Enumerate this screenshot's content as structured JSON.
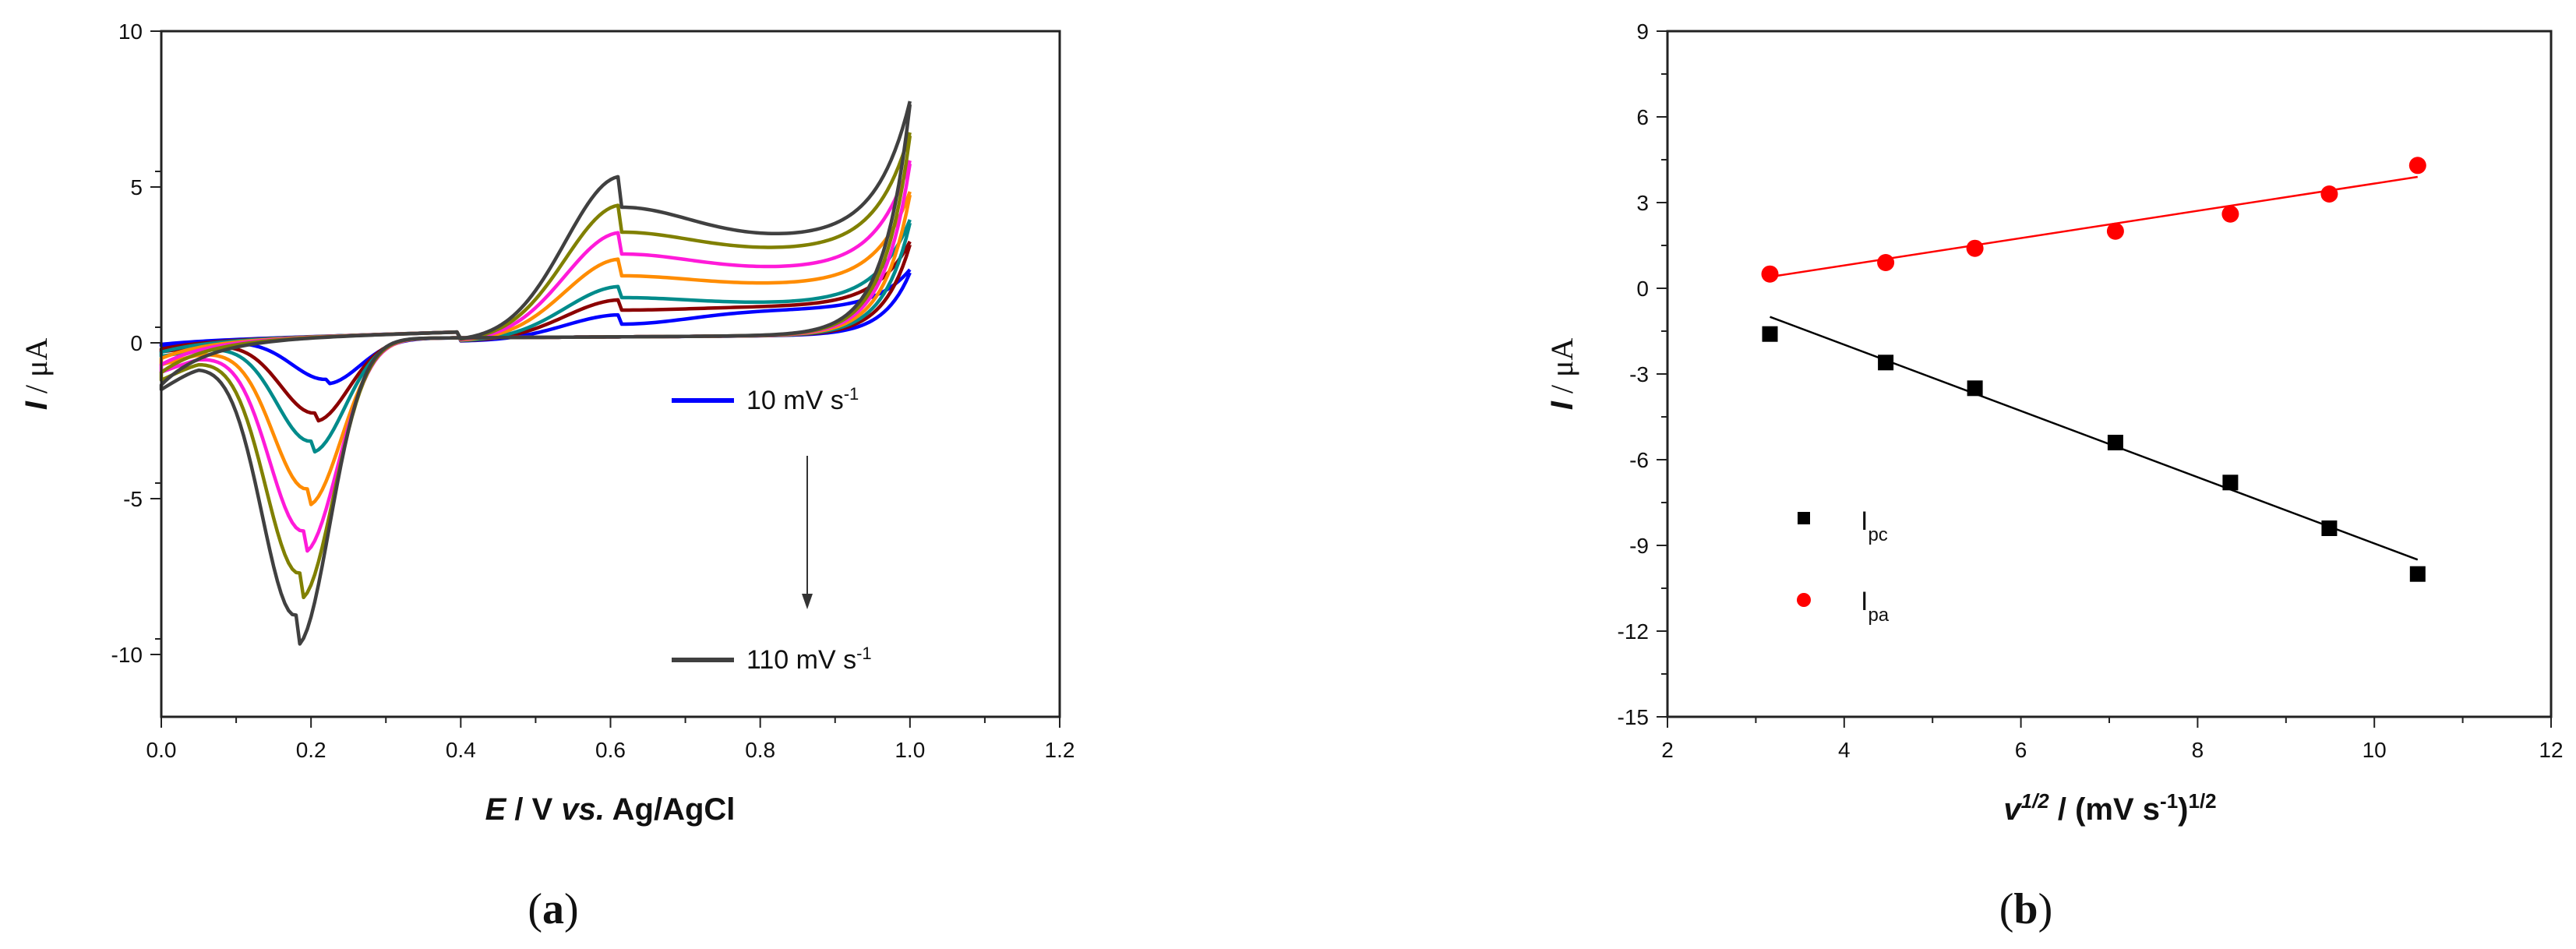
{
  "chart_data": [
    {
      "type": "line",
      "panel_label": {
        "open": "(",
        "letter": "a",
        "close": ")"
      },
      "xlabel": {
        "italic": "E",
        "mid": " / V ",
        "vs": "vs.",
        "rest": " Ag/AgCl"
      },
      "ylabel": {
        "italic": "I",
        "rest": " / μA"
      },
      "xlim": [
        0.0,
        1.2
      ],
      "ylim": [
        -12,
        10
      ],
      "x_ticks": [
        "0.0",
        "0.2",
        "0.4",
        "0.6",
        "0.8",
        "1.0",
        "1.2"
      ],
      "y_ticks": [
        "10",
        "5",
        "0",
        "-5",
        "-10"
      ],
      "grid": false,
      "annotations": [
        {
          "text": "10 mV s",
          "sup": "-1",
          "color": "#0000ff"
        },
        {
          "text": "110 mV s",
          "sup": "-1",
          "color": "#404040"
        }
      ],
      "series": [
        {
          "color": "#0000ff",
          "switch_current": 2.3,
          "min_current": 1.0,
          "cath_peak_E": 0.22,
          "cath_peak_I": -1.4,
          "anod_peak_I": 0.55,
          "forward_base": -0.1
        },
        {
          "color": "#8b0000",
          "switch_current": 3.2,
          "min_current": 1.1,
          "cath_peak_E": 0.205,
          "cath_peak_I": -2.6,
          "anod_peak_I": 1.0,
          "forward_base": -0.25
        },
        {
          "color": "#008b8b",
          "switch_current": 3.9,
          "min_current": 1.2,
          "cath_peak_E": 0.2,
          "cath_peak_I": -3.6,
          "anod_peak_I": 1.4,
          "forward_base": -0.35
        },
        {
          "color": "#ff8c00",
          "switch_current": 4.8,
          "min_current": 1.8,
          "cath_peak_E": 0.195,
          "cath_peak_I": -5.3,
          "anod_peak_I": 2.1,
          "forward_base": -0.55
        },
        {
          "color": "#ff1ad9",
          "switch_current": 5.8,
          "min_current": 2.3,
          "cath_peak_E": 0.19,
          "cath_peak_I": -6.8,
          "anod_peak_I": 2.8,
          "forward_base": -0.75
        },
        {
          "color": "#808000",
          "switch_current": 6.7,
          "min_current": 2.9,
          "cath_peak_E": 0.185,
          "cath_peak_I": -8.3,
          "anod_peak_I": 3.5,
          "forward_base": -1.0
        },
        {
          "color": "#404040",
          "switch_current": 7.7,
          "min_current": 3.3,
          "cath_peak_E": 0.18,
          "cath_peak_I": -9.8,
          "anod_peak_I": 4.3,
          "forward_base": -1.4
        }
      ]
    },
    {
      "type": "scatter",
      "panel_label": {
        "open": "(",
        "letter": "b",
        "close": ")"
      },
      "xlabel": {
        "italic": "v",
        "sup": "1/2",
        "mid": " / (mV s",
        "sup2": "-1",
        "close": ")",
        "sup3": "1/2"
      },
      "ylabel": {
        "italic": "I",
        "rest": " / μA"
      },
      "xlim": [
        2,
        12
      ],
      "ylim": [
        -15,
        9
      ],
      "x_ticks": [
        "2",
        "4",
        "6",
        "8",
        "10",
        "12"
      ],
      "y_ticks": [
        "9",
        "6",
        "3",
        "0",
        "-3",
        "-6",
        "-9",
        "-12",
        "-15"
      ],
      "grid": false,
      "legend_position": "lower-left",
      "x": [
        3.16,
        4.47,
        5.48,
        7.07,
        8.37,
        9.49,
        10.49
      ],
      "series": [
        {
          "name": "I",
          "sub": "pc",
          "marker": "square",
          "color": "#000000",
          "values": [
            -1.6,
            -2.6,
            -3.5,
            -5.4,
            -6.8,
            -8.4,
            -10.0
          ],
          "fit": [
            -1.0,
            -9.5
          ]
        },
        {
          "name": "I",
          "sub": "pa",
          "marker": "circle",
          "color": "#ff0000",
          "values": [
            0.5,
            0.9,
            1.4,
            2.0,
            2.6,
            3.3,
            4.3
          ],
          "fit": [
            0.4,
            3.9
          ]
        }
      ]
    }
  ]
}
